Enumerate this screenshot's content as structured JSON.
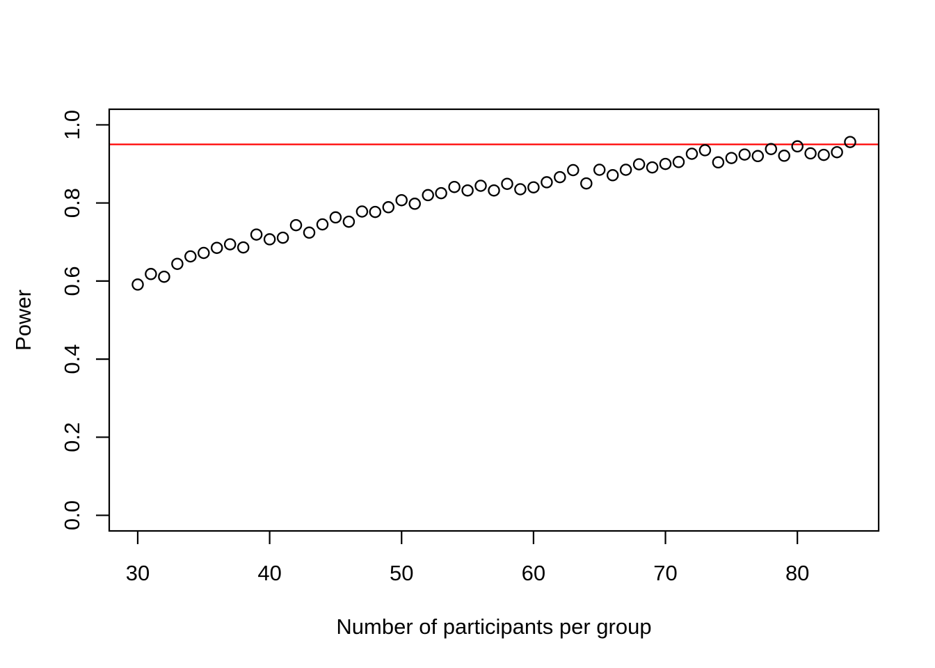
{
  "figure": {
    "background": "#FFFFFF",
    "foreground": "#000000"
  },
  "chart_data": {
    "type": "scatter",
    "title": "",
    "xlabel": "Number of participants per group",
    "ylabel": "Power",
    "marker": "open-circle",
    "marker_color": "#000000",
    "grid": false,
    "legend_position": "none",
    "x": [
      30,
      31,
      32,
      33,
      34,
      35,
      36,
      37,
      38,
      39,
      40,
      41,
      42,
      43,
      44,
      45,
      46,
      47,
      48,
      49,
      50,
      51,
      52,
      53,
      54,
      55,
      56,
      57,
      58,
      59,
      60,
      61,
      62,
      63,
      64,
      65,
      66,
      67,
      68,
      69,
      70,
      71,
      72,
      73,
      74,
      75,
      76,
      77,
      78,
      79,
      80,
      81,
      82,
      83,
      84
    ],
    "y": [
      0.591,
      0.618,
      0.611,
      0.644,
      0.663,
      0.672,
      0.685,
      0.694,
      0.686,
      0.719,
      0.707,
      0.711,
      0.743,
      0.724,
      0.745,
      0.763,
      0.752,
      0.778,
      0.777,
      0.789,
      0.807,
      0.798,
      0.82,
      0.825,
      0.841,
      0.832,
      0.844,
      0.832,
      0.849,
      0.835,
      0.84,
      0.853,
      0.866,
      0.884,
      0.85,
      0.885,
      0.871,
      0.885,
      0.899,
      0.891,
      0.9,
      0.905,
      0.926,
      0.935,
      0.904,
      0.915,
      0.924,
      0.92,
      0.938,
      0.921,
      0.945,
      0.927,
      0.923,
      0.93,
      0.956
    ],
    "xticks": [
      30,
      40,
      50,
      60,
      70,
      80
    ],
    "xtick_labels": [
      "30",
      "40",
      "50",
      "60",
      "70",
      "80"
    ],
    "yticks": [
      0.0,
      0.2,
      0.4,
      0.6,
      0.8,
      1.0
    ],
    "ytick_labels": [
      "0.0",
      "0.2",
      "0.4",
      "0.6",
      "0.8",
      "1.0"
    ],
    "xlim": [
      27.84,
      86.16
    ],
    "ylim": [
      -0.04,
      1.04
    ],
    "reference_line": {
      "orientation": "horizontal",
      "y": 0.95,
      "color": "#FF0000"
    }
  }
}
